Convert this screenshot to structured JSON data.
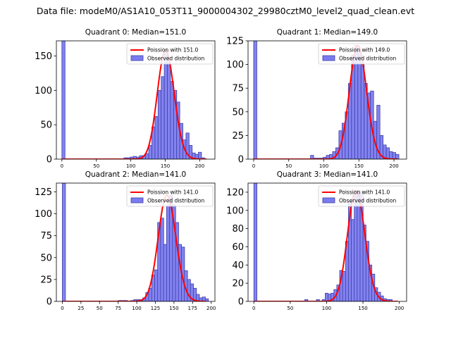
{
  "figure": {
    "title": "Data file: modeM0/AS1A10_053T11_9000004302_29980cztM0_level2_quad_clean.evt"
  },
  "chart_data": [
    {
      "type": "bar",
      "title": "Quadrant 0: Median=151.0",
      "median": 151.0,
      "xlim": [
        -8,
        222
      ],
      "ylim": [
        0,
        172
      ],
      "xticks": [
        0,
        50,
        100,
        150,
        200
      ],
      "yticks": [
        0,
        50,
        100,
        150
      ],
      "bin_width": 4.5,
      "bins": [
        [
          0,
          172
        ],
        [
          90,
          2
        ],
        [
          94.5,
          2
        ],
        [
          99,
          3
        ],
        [
          103.5,
          4
        ],
        [
          108,
          3
        ],
        [
          112.5,
          5
        ],
        [
          117,
          5
        ],
        [
          121.5,
          8
        ],
        [
          126,
          20
        ],
        [
          130.5,
          47
        ],
        [
          135,
          62
        ],
        [
          139.5,
          100
        ],
        [
          144,
          120
        ],
        [
          148.5,
          158
        ],
        [
          153,
          140
        ],
        [
          157.5,
          113
        ],
        [
          162,
          100
        ],
        [
          166.5,
          83
        ],
        [
          171,
          52
        ],
        [
          175.5,
          28
        ],
        [
          180,
          38
        ],
        [
          184.5,
          20
        ],
        [
          189,
          9
        ],
        [
          193.5,
          7
        ],
        [
          198,
          10
        ],
        [
          202.5,
          2
        ]
      ],
      "legend": {
        "line": "Poission with 151.0",
        "bars": "Observed distribution"
      },
      "colors": {
        "bars": "#7b7bf0",
        "edge": "#4040a8",
        "line": "#ff0000"
      }
    },
    {
      "type": "bar",
      "title": "Quadrant 1: Median=149.0",
      "median": 149.0,
      "xlim": [
        -8,
        218
      ],
      "ylim": [
        0,
        125
      ],
      "xticks": [
        0,
        50,
        100,
        150,
        200
      ],
      "yticks": [
        0,
        25,
        50,
        75,
        100,
        125
      ],
      "bin_width": 4.5,
      "bins": [
        [
          0,
          125
        ],
        [
          81,
          4
        ],
        [
          85.5,
          1
        ],
        [
          90,
          1
        ],
        [
          94.5,
          1
        ],
        [
          99,
          2
        ],
        [
          103.5,
          4
        ],
        [
          108,
          5
        ],
        [
          112.5,
          8
        ],
        [
          117,
          12
        ],
        [
          121.5,
          30
        ],
        [
          126,
          38
        ],
        [
          130.5,
          50
        ],
        [
          135,
          80
        ],
        [
          139.5,
          110
        ],
        [
          144,
          120
        ],
        [
          148.5,
          115
        ],
        [
          153,
          100
        ],
        [
          157.5,
          80
        ],
        [
          162,
          70
        ],
        [
          166.5,
          72
        ],
        [
          171,
          40
        ],
        [
          175.5,
          57
        ],
        [
          180,
          25
        ],
        [
          184.5,
          15
        ],
        [
          189,
          12
        ],
        [
          193.5,
          8
        ],
        [
          198,
          7
        ],
        [
          202.5,
          5
        ]
      ],
      "legend": {
        "line": "Poission with 149.0",
        "bars": "Observed distribution"
      },
      "colors": {
        "bars": "#7b7bf0",
        "edge": "#4040a8",
        "line": "#ff0000"
      }
    },
    {
      "type": "bar",
      "title": "Quadrant 2: Median=141.0",
      "median": 141.0,
      "xlim": [
        -8,
        205
      ],
      "ylim": [
        0,
        135
      ],
      "xticks": [
        0,
        25,
        50,
        75,
        100,
        125,
        150,
        175,
        200
      ],
      "yticks": [
        0,
        25,
        50,
        75,
        100,
        125
      ],
      "bin_width": 4.2,
      "bins": [
        [
          0,
          135
        ],
        [
          75,
          1
        ],
        [
          79.2,
          1
        ],
        [
          83.4,
          1
        ],
        [
          92,
          1
        ],
        [
          96,
          2
        ],
        [
          100,
          2
        ],
        [
          104,
          2
        ],
        [
          108,
          4
        ],
        [
          112,
          10
        ],
        [
          116,
          15
        ],
        [
          120,
          30
        ],
        [
          124,
          36
        ],
        [
          128,
          90
        ],
        [
          132,
          95
        ],
        [
          136,
          65
        ],
        [
          140,
          110
        ],
        [
          144,
          121
        ],
        [
          148,
          110
        ],
        [
          152,
          90
        ],
        [
          156,
          65
        ],
        [
          160,
          62
        ],
        [
          164,
          35
        ],
        [
          168,
          25
        ],
        [
          172,
          20
        ],
        [
          176,
          15
        ],
        [
          180,
          8
        ],
        [
          184,
          4
        ],
        [
          188,
          5
        ],
        [
          192,
          3
        ]
      ],
      "legend": {
        "line": "Poission with 141.0",
        "bars": "Observed distribution"
      },
      "colors": {
        "bars": "#7b7bf0",
        "edge": "#4040a8",
        "line": "#ff0000"
      }
    },
    {
      "type": "bar",
      "title": "Quadrant 3: Median=141.0",
      "median": 141.0,
      "xlim": [
        -8,
        210
      ],
      "ylim": [
        0,
        130
      ],
      "xticks": [
        0,
        50,
        100,
        150,
        200
      ],
      "yticks": [
        0,
        20,
        40,
        60,
        80,
        100,
        120
      ],
      "bin_width": 4.2,
      "bins": [
        [
          0,
          130
        ],
        [
          70,
          2
        ],
        [
          86,
          2
        ],
        [
          94,
          2
        ],
        [
          98,
          9
        ],
        [
          102,
          8
        ],
        [
          106,
          9
        ],
        [
          110,
          13
        ],
        [
          114,
          18
        ],
        [
          118,
          34
        ],
        [
          122,
          33
        ],
        [
          126,
          66
        ],
        [
          130,
          110
        ],
        [
          134,
          90
        ],
        [
          138,
          120
        ],
        [
          142,
          122
        ],
        [
          146,
          120
        ],
        [
          150,
          84
        ],
        [
          154,
          66
        ],
        [
          158,
          40
        ],
        [
          162,
          30
        ],
        [
          166,
          15
        ],
        [
          170,
          10
        ],
        [
          174,
          6
        ],
        [
          178,
          3
        ],
        [
          182,
          2
        ],
        [
          186,
          2
        ]
      ],
      "legend": {
        "line": "Poission with 141.0",
        "bars": "Observed distribution"
      },
      "colors": {
        "bars": "#7b7bf0",
        "edge": "#4040a8",
        "line": "#ff0000"
      }
    }
  ]
}
